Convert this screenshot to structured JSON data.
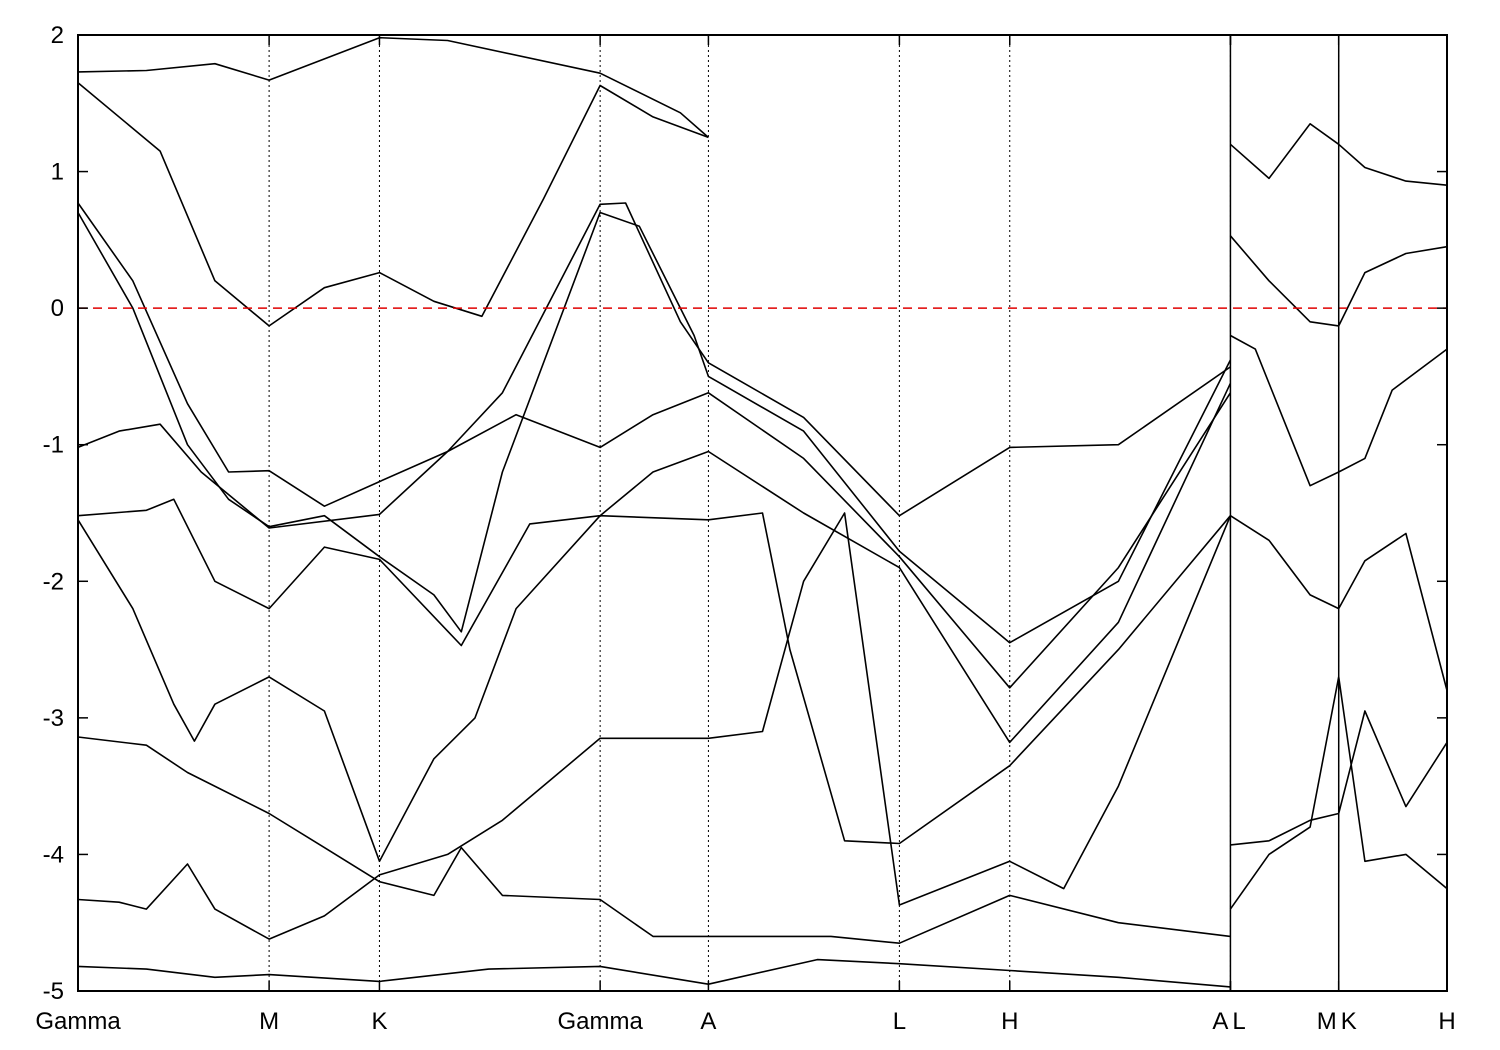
{
  "chart_data": {
    "type": "line",
    "title": "",
    "xlabel": "",
    "ylabel": "",
    "ylim": [
      -5,
      2
    ],
    "y_ticks": [
      "2",
      "1",
      "0",
      "-1",
      "-2",
      "-3",
      "-4",
      "-5"
    ],
    "y_tick_values": [
      2,
      1,
      0,
      -1,
      -2,
      -3,
      -4,
      -5
    ],
    "xlim": [
      0,
      1.0
    ],
    "high_symmetry_points": [
      {
        "label": "Gamma",
        "x": 0.0
      },
      {
        "label": "M",
        "x": 0.1396
      },
      {
        "label": "K",
        "x": 0.2202
      },
      {
        "label": "Gamma",
        "x": 0.3814
      },
      {
        "label": "A",
        "x": 0.4605
      },
      {
        "label": "L",
        "x": 0.6
      },
      {
        "label": "H",
        "x": 0.6806
      },
      {
        "label": "A",
        "x": 0.8418
      },
      {
        "label": "L",
        "x": 0.8418
      },
      {
        "label": "M",
        "x": 0.9209
      },
      {
        "label": "K",
        "x": 0.9209
      },
      {
        "label": "H",
        "x": 1.0
      }
    ],
    "fermi_level": {
      "y": 0,
      "color": "#e00000",
      "style": "dashed"
    },
    "grid": false,
    "line_color": "#000000",
    "series": [
      {
        "points": [
          [
            0.0,
            1.73
          ],
          [
            0.05,
            1.74
          ],
          [
            0.1,
            1.79
          ],
          [
            0.1396,
            1.67
          ],
          [
            0.2202,
            1.98
          ],
          [
            0.27,
            1.96
          ],
          [
            0.3814,
            1.72
          ],
          [
            0.44,
            1.43
          ],
          [
            0.4605,
            1.25
          ]
        ]
      },
      {
        "points": [
          [
            0.0,
            1.65
          ],
          [
            0.06,
            1.15
          ],
          [
            0.1,
            0.2
          ],
          [
            0.1396,
            -0.13
          ],
          [
            0.18,
            0.15
          ],
          [
            0.2202,
            0.26
          ],
          [
            0.26,
            0.05
          ],
          [
            0.295,
            -0.06
          ],
          [
            0.34,
            0.8
          ],
          [
            0.3814,
            1.63
          ],
          [
            0.42,
            1.4
          ],
          [
            0.4605,
            1.25
          ]
        ]
      },
      {
        "points": [
          [
            0.0,
            0.77
          ],
          [
            0.04,
            0.2
          ],
          [
            0.08,
            -0.7
          ],
          [
            0.11,
            -1.2
          ],
          [
            0.1396,
            -1.19
          ],
          [
            0.18,
            -1.45
          ],
          [
            0.2202,
            -1.27
          ],
          [
            0.27,
            -1.05
          ],
          [
            0.31,
            -0.62
          ],
          [
            0.3814,
            0.76
          ],
          [
            0.4,
            0.77
          ],
          [
            0.44,
            -0.1
          ],
          [
            0.4605,
            -0.4
          ],
          [
            0.53,
            -0.8
          ],
          [
            0.6,
            -1.52
          ],
          [
            0.6806,
            -1.02
          ],
          [
            0.76,
            -1.0
          ],
          [
            0.8418,
            -0.43
          ]
        ]
      },
      {
        "points": [
          [
            0.0,
            0.7
          ],
          [
            0.04,
            0.0
          ],
          [
            0.08,
            -1.0
          ],
          [
            0.11,
            -1.4
          ],
          [
            0.1396,
            -1.6
          ],
          [
            0.18,
            -1.52
          ],
          [
            0.2202,
            -1.82
          ],
          [
            0.26,
            -2.1
          ],
          [
            0.28,
            -2.37
          ],
          [
            0.31,
            -1.2
          ],
          [
            0.3814,
            0.7
          ],
          [
            0.41,
            0.6
          ],
          [
            0.45,
            -0.2
          ],
          [
            0.4605,
            -0.5
          ],
          [
            0.53,
            -0.9
          ],
          [
            0.6,
            -1.78
          ],
          [
            0.6806,
            -2.45
          ],
          [
            0.76,
            -2.0
          ],
          [
            0.8418,
            -0.38
          ]
        ]
      },
      {
        "points": [
          [
            0.0,
            -1.02
          ],
          [
            0.03,
            -0.9
          ],
          [
            0.06,
            -0.85
          ],
          [
            0.09,
            -1.2
          ],
          [
            0.1396,
            -1.61
          ],
          [
            0.2202,
            -1.51
          ],
          [
            0.27,
            -1.05
          ],
          [
            0.32,
            -0.78
          ],
          [
            0.3814,
            -1.02
          ],
          [
            0.42,
            -0.78
          ],
          [
            0.4605,
            -0.62
          ],
          [
            0.53,
            -1.1
          ],
          [
            0.6,
            -1.82
          ],
          [
            0.6806,
            -2.78
          ],
          [
            0.76,
            -1.9
          ],
          [
            0.8418,
            -0.62
          ]
        ]
      },
      {
        "points": [
          [
            0.0,
            -1.52
          ],
          [
            0.05,
            -1.48
          ],
          [
            0.07,
            -1.4
          ],
          [
            0.1,
            -2.0
          ],
          [
            0.1396,
            -2.2
          ],
          [
            0.18,
            -1.75
          ],
          [
            0.2202,
            -1.84
          ],
          [
            0.28,
            -2.47
          ],
          [
            0.33,
            -1.58
          ],
          [
            0.3814,
            -1.52
          ],
          [
            0.42,
            -1.2
          ],
          [
            0.4605,
            -1.05
          ],
          [
            0.53,
            -1.5
          ],
          [
            0.6,
            -1.9
          ],
          [
            0.6806,
            -3.18
          ],
          [
            0.76,
            -2.3
          ],
          [
            0.8418,
            -0.55
          ]
        ]
      },
      {
        "points": [
          [
            0.0,
            -1.55
          ],
          [
            0.04,
            -2.2
          ],
          [
            0.07,
            -2.9
          ],
          [
            0.085,
            -3.17
          ],
          [
            0.1,
            -2.9
          ],
          [
            0.1396,
            -2.7
          ],
          [
            0.18,
            -2.95
          ],
          [
            0.2202,
            -4.05
          ],
          [
            0.26,
            -3.3
          ],
          [
            0.29,
            -3.0
          ],
          [
            0.32,
            -2.2
          ],
          [
            0.3814,
            -1.52
          ],
          [
            0.4605,
            -1.55
          ],
          [
            0.5,
            -1.5
          ],
          [
            0.52,
            -2.5
          ],
          [
            0.56,
            -3.9
          ],
          [
            0.6,
            -3.92
          ],
          [
            0.6806,
            -3.35
          ],
          [
            0.76,
            -2.5
          ],
          [
            0.8418,
            -1.52
          ]
        ]
      },
      {
        "points": [
          [
            0.0,
            -3.14
          ],
          [
            0.05,
            -3.2
          ],
          [
            0.08,
            -3.4
          ],
          [
            0.1396,
            -3.7
          ],
          [
            0.18,
            -3.95
          ],
          [
            0.2202,
            -4.2
          ],
          [
            0.26,
            -4.3
          ],
          [
            0.28,
            -3.95
          ],
          [
            0.31,
            -4.3
          ],
          [
            0.3814,
            -4.33
          ],
          [
            0.42,
            -4.6
          ],
          [
            0.4605,
            -4.6
          ],
          [
            0.55,
            -4.6
          ],
          [
            0.6,
            -4.65
          ],
          [
            0.6806,
            -4.3
          ],
          [
            0.76,
            -4.5
          ],
          [
            0.8418,
            -4.6
          ]
        ]
      },
      {
        "points": [
          [
            0.0,
            -4.33
          ],
          [
            0.03,
            -4.35
          ],
          [
            0.05,
            -4.4
          ],
          [
            0.08,
            -4.07
          ],
          [
            0.1,
            -4.4
          ],
          [
            0.1396,
            -4.62
          ],
          [
            0.18,
            -4.45
          ],
          [
            0.2202,
            -4.15
          ],
          [
            0.27,
            -4.0
          ],
          [
            0.31,
            -3.75
          ],
          [
            0.3814,
            -3.15
          ],
          [
            0.4605,
            -3.15
          ],
          [
            0.5,
            -3.1
          ],
          [
            0.53,
            -2.0
          ],
          [
            0.56,
            -1.5
          ],
          [
            0.6,
            -4.37
          ],
          [
            0.6806,
            -4.05
          ],
          [
            0.72,
            -4.25
          ],
          [
            0.76,
            -3.5
          ],
          [
            0.8418,
            -1.52
          ]
        ]
      },
      {
        "points": [
          [
            0.0,
            -4.82
          ],
          [
            0.05,
            -4.84
          ],
          [
            0.1,
            -4.9
          ],
          [
            0.1396,
            -4.88
          ],
          [
            0.2202,
            -4.93
          ],
          [
            0.3,
            -4.84
          ],
          [
            0.3814,
            -4.82
          ],
          [
            0.4605,
            -4.95
          ],
          [
            0.54,
            -4.77
          ],
          [
            0.6,
            -4.8
          ],
          [
            0.6806,
            -4.85
          ],
          [
            0.76,
            -4.9
          ],
          [
            0.8418,
            -4.97
          ]
        ]
      },
      {
        "points": [
          [
            0.8418,
            -0.2
          ],
          [
            0.86,
            -0.3
          ],
          [
            0.88,
            -0.8
          ],
          [
            0.9,
            -1.3
          ],
          [
            0.9209,
            -1.2
          ],
          [
            0.94,
            -1.1
          ],
          [
            0.96,
            -0.6
          ],
          [
            1.0,
            -0.3
          ]
        ]
      },
      {
        "points": [
          [
            0.8418,
            0.53
          ],
          [
            0.87,
            0.2
          ],
          [
            0.9,
            -0.1
          ],
          [
            0.9209,
            -0.13
          ],
          [
            0.94,
            0.26
          ],
          [
            0.97,
            0.4
          ],
          [
            1.0,
            0.45
          ]
        ]
      },
      {
        "points": [
          [
            0.8418,
            -1.52
          ],
          [
            0.87,
            -1.7
          ],
          [
            0.9,
            -2.1
          ],
          [
            0.9209,
            -2.2
          ],
          [
            0.94,
            -1.85
          ],
          [
            0.97,
            -1.65
          ],
          [
            1.0,
            -2.8
          ]
        ]
      },
      {
        "points": [
          [
            0.8418,
            -3.93
          ],
          [
            0.87,
            -3.9
          ],
          [
            0.9,
            -3.75
          ],
          [
            0.9209,
            -3.7
          ],
          [
            0.94,
            -2.95
          ],
          [
            0.97,
            -3.65
          ],
          [
            1.0,
            -3.18
          ]
        ]
      },
      {
        "points": [
          [
            0.8418,
            -4.4
          ],
          [
            0.87,
            -4.0
          ],
          [
            0.9,
            -3.8
          ],
          [
            0.9209,
            -2.7
          ],
          [
            0.94,
            -4.05
          ],
          [
            0.97,
            -4.0
          ],
          [
            1.0,
            -4.25
          ]
        ]
      },
      {
        "points": [
          [
            0.8418,
            1.2
          ],
          [
            0.87,
            0.95
          ],
          [
            0.9,
            1.35
          ],
          [
            0.9209,
            1.2
          ],
          [
            0.94,
            1.03
          ],
          [
            0.97,
            0.93
          ],
          [
            1.0,
            0.9
          ]
        ]
      }
    ]
  }
}
